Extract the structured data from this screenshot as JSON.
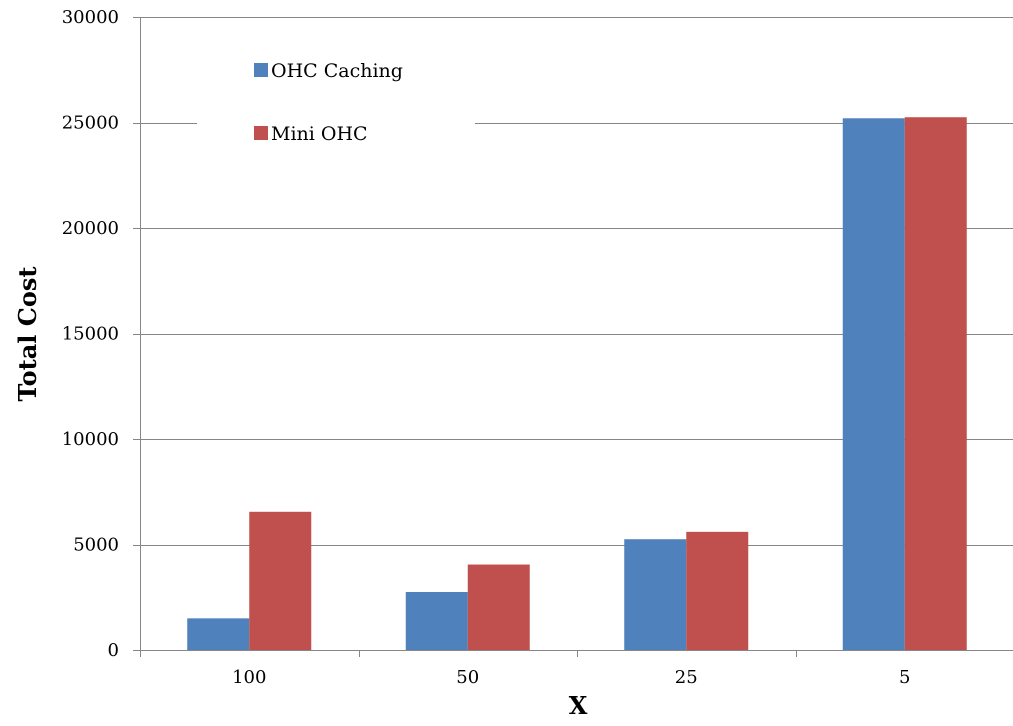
{
  "chart_data": {
    "type": "bar",
    "title": "",
    "xlabel": "X",
    "ylabel": "Total Cost",
    "categories": [
      "100",
      "50",
      "25",
      "5"
    ],
    "ylim": [
      0,
      30000
    ],
    "yticks": [
      "0",
      "5000",
      "10000",
      "15000",
      "20000",
      "25000",
      "30000"
    ],
    "grid": true,
    "legend_position": "top-left",
    "series": [
      {
        "name": "OHC Caching",
        "color": "#4f81bd",
        "values": [
          1500,
          2750,
          5250,
          25200
        ]
      },
      {
        "name": "Mini OHC",
        "color": "#c0504d",
        "values": [
          6550,
          4050,
          5600,
          25250
        ]
      }
    ]
  }
}
